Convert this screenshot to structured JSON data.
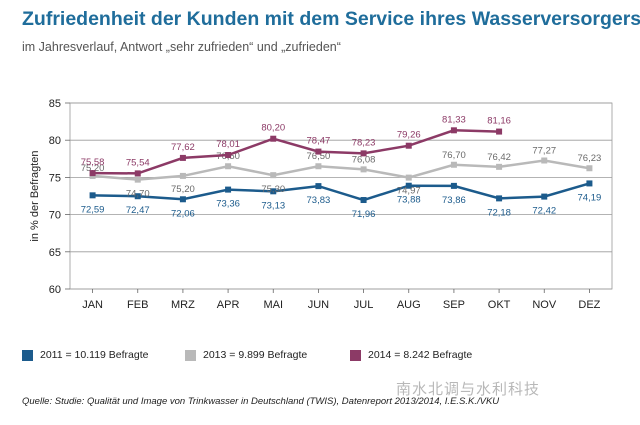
{
  "header": {
    "title": "Zufriedenheit der Kunden mit dem Service ihres Wasserversorgers",
    "subtitle": "im Jahresverlauf, Antwort „sehr zufrieden“ und „zufrieden“"
  },
  "chart_data": {
    "type": "line",
    "title": "Zufriedenheit der Kunden mit dem Service ihres Wasserversorgers",
    "subtitle": "im Jahresverlauf, Antwort „sehr zufrieden“ und „zufrieden“",
    "xlabel": "",
    "ylabel": "in % der Befragten",
    "ylim": [
      60,
      85
    ],
    "yticks": [
      60,
      65,
      70,
      75,
      80,
      85
    ],
    "grid": true,
    "legend_position": "bottom",
    "categories": [
      "JAN",
      "FEB",
      "MRZ",
      "APR",
      "MAI",
      "JUN",
      "JUL",
      "AUG",
      "SEP",
      "OKT",
      "NOV",
      "DEZ"
    ],
    "series": [
      {
        "name": "2011 = 10.119 Befragte",
        "color": "#1c5b8c",
        "values": [
          72.59,
          72.47,
          72.06,
          73.36,
          73.13,
          73.83,
          71.96,
          73.88,
          73.86,
          72.18,
          72.42,
          74.19
        ],
        "labels": [
          "72,59",
          "72,47",
          "72,06",
          "73,36",
          "73,13",
          "73,83",
          "71,96",
          "73,88",
          "73,86",
          "72,18",
          "72,42",
          "74,19"
        ]
      },
      {
        "name": "2013 = 9.899 Befragte",
        "color": "#b9b9b9",
        "values": [
          75.2,
          74.7,
          75.2,
          76.5,
          75.3,
          76.5,
          76.08,
          74.97,
          76.7,
          76.42,
          77.27,
          76.23
        ],
        "labels": [
          "75,20",
          "74,70",
          "75,20",
          "76,50",
          "75,30",
          "76,50",
          "76,08",
          "74,97",
          "76,70",
          "76,42",
          "77,27",
          "76,23"
        ]
      },
      {
        "name": "2014 = 8.242 Befragte",
        "color": "#8c3a66",
        "values": [
          75.58,
          75.54,
          77.62,
          78.01,
          80.2,
          78.47,
          78.23,
          79.26,
          81.33,
          81.16,
          null,
          null
        ],
        "labels": [
          "75,58",
          "75,54",
          "77,62",
          "78,01",
          "80,20",
          "78,47",
          "78,23",
          "79,26",
          "81,33",
          "81,16",
          null,
          null
        ]
      }
    ]
  },
  "source": "Quelle: Studie: Qualität und Image von Trinkwasser in Deutschland (TWIS), Datenreport 2013/2014, I.E.S.K./VKU",
  "watermark": "南水北调与水利科技",
  "colors": {
    "title": "#1f6d9b",
    "series_2011": "#1c5b8c",
    "series_2013": "#b9b9b9",
    "series_2014": "#8c3a66"
  }
}
